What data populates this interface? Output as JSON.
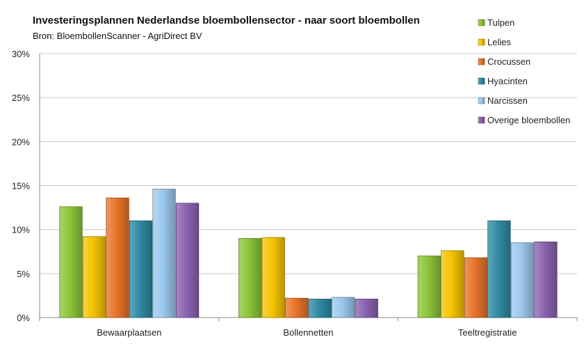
{
  "chart_data": {
    "type": "bar",
    "title": "Investeringsplannen Nederlandse bloembollensector - naar soort bloembollen",
    "subtitle": "Bron: BloembollenScanner - AgriDirect BV",
    "categories": [
      "Bewaarplaatsen",
      "Bollennetten",
      "Teeltregistratie"
    ],
    "series": [
      {
        "name": "Tulpen",
        "color": "#8cc43a",
        "values": [
          12.6,
          9.0,
          7.0
        ]
      },
      {
        "name": "Lelies",
        "color": "#f5c400",
        "values": [
          9.2,
          9.1,
          7.6
        ]
      },
      {
        "name": "Crocussen",
        "color": "#e8742a",
        "values": [
          13.6,
          2.2,
          6.8
        ]
      },
      {
        "name": "Hyacinten",
        "color": "#2f8aa3",
        "values": [
          11.0,
          2.1,
          11.0
        ]
      },
      {
        "name": "Narcissen",
        "color": "#9cc8ec",
        "values": [
          14.6,
          2.3,
          8.5
        ]
      },
      {
        "name": "Overige bloembollen",
        "color": "#8a63b0",
        "values": [
          13.0,
          2.1,
          8.6
        ]
      }
    ],
    "ylim": [
      0,
      30
    ],
    "yticks": [
      "0%",
      "5%",
      "10%",
      "15%",
      "20%",
      "25%",
      "30%"
    ],
    "ytick_values": [
      0,
      5,
      10,
      15,
      20,
      25,
      30
    ],
    "grid": true,
    "legend_position": "top-right"
  }
}
